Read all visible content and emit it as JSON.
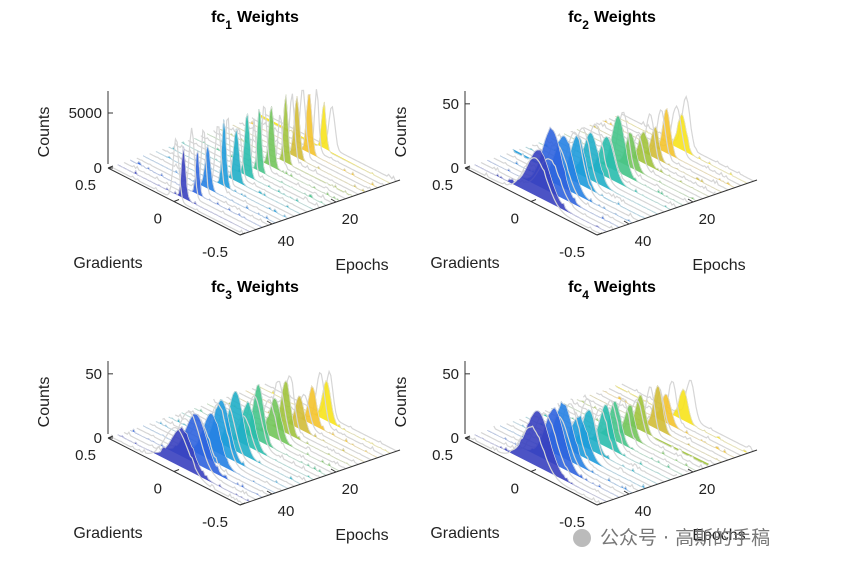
{
  "chart_data": [
    {
      "type": "waterfall",
      "title": "fc",
      "title_subscript": "1",
      "title_suffix": "Weights",
      "xlabel": "Gradients",
      "ylabel": "Epochs",
      "zlabel": "Counts",
      "xlim": [
        -0.5,
        0.5
      ],
      "xticks": [
        -0.5,
        0,
        0.5
      ],
      "ylim": [
        0,
        50
      ],
      "yticks": [
        20,
        40
      ],
      "zlim": [
        0,
        7000
      ],
      "zticks": [
        0,
        5000
      ]
    },
    {
      "type": "waterfall",
      "title": "fc",
      "title_subscript": "2",
      "title_suffix": "Weights",
      "xlabel": "Gradients",
      "ylabel": "Epochs",
      "zlabel": "Counts",
      "xlim": [
        -0.5,
        0.5
      ],
      "xticks": [
        -0.5,
        0,
        0.5
      ],
      "ylim": [
        0,
        50
      ],
      "yticks": [
        20,
        40
      ],
      "zlim": [
        0,
        60
      ],
      "zticks": [
        0,
        50
      ]
    },
    {
      "type": "waterfall",
      "title": "fc",
      "title_subscript": "3",
      "title_suffix": "Weights",
      "xlabel": "Gradients",
      "ylabel": "Epochs",
      "zlabel": "Counts",
      "xlim": [
        -0.5,
        0.5
      ],
      "xticks": [
        -0.5,
        0,
        0.5
      ],
      "ylim": [
        0,
        50
      ],
      "yticks": [
        20,
        40
      ],
      "zlim": [
        0,
        60
      ],
      "zticks": [
        0,
        50
      ]
    },
    {
      "type": "waterfall",
      "title": "fc",
      "title_subscript": "4",
      "title_suffix": "Weights",
      "xlabel": "Gradients",
      "ylabel": "Epochs",
      "zlabel": "Counts",
      "xlim": [
        -0.5,
        0.5
      ],
      "xticks": [
        -0.5,
        0,
        0.5
      ],
      "ylim": [
        0,
        50
      ],
      "yticks": [
        20,
        40
      ],
      "zlim": [
        0,
        60
      ],
      "zticks": [
        0,
        50
      ]
    }
  ],
  "colormap": [
    "#3e26a8",
    "#2c6fe8",
    "#1aa6d8",
    "#2ec4a0",
    "#8cc63f",
    "#f3b832",
    "#f9fb0e"
  ],
  "watermark": "公众号 · 高斯的手稿"
}
